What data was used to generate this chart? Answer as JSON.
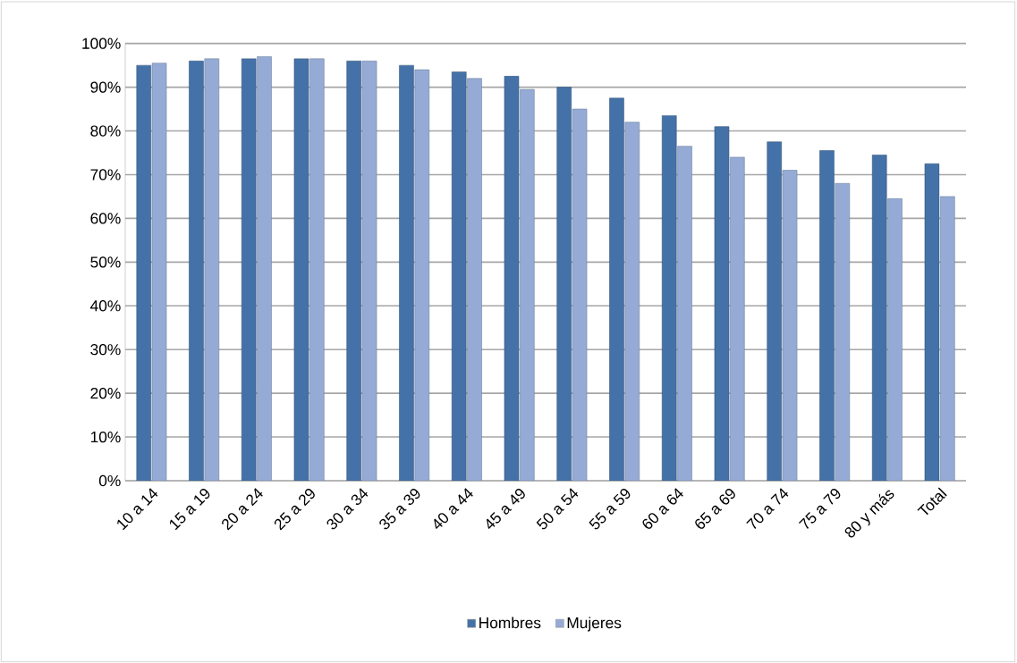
{
  "chart_data": {
    "type": "bar",
    "categories": [
      "10 a 14",
      "15 a 19",
      "20 a 24",
      "25 a 29",
      "30 a 34",
      "35 a 39",
      "40 a 44",
      "45 a 49",
      "50 a 54",
      "55 a 59",
      "60 a 64",
      "65 a 69",
      "70 a 74",
      "75 a 79",
      "80 y más",
      "Total"
    ],
    "series": [
      {
        "name": "Hombres",
        "color": "#4472a8",
        "values": [
          95,
          96,
          96.5,
          96.5,
          96,
          95,
          93.5,
          92.5,
          90,
          87.5,
          83.5,
          81,
          77.5,
          75.5,
          74.5,
          72.5
        ]
      },
      {
        "name": "Mujeres",
        "color": "#95abd6",
        "values": [
          95.5,
          96.5,
          97,
          96.5,
          96,
          94,
          92,
          89.5,
          85,
          82,
          76.5,
          74,
          71,
          68,
          64.5,
          65
        ]
      }
    ],
    "ylim": [
      0,
      100
    ],
    "yticks": [
      {
        "value": 0,
        "label": "0%"
      },
      {
        "value": 10,
        "label": "10%"
      },
      {
        "value": 20,
        "label": "20%"
      },
      {
        "value": 30,
        "label": "30%"
      },
      {
        "value": 40,
        "label": "40%"
      },
      {
        "value": 50,
        "label": "50%"
      },
      {
        "value": 60,
        "label": "60%"
      },
      {
        "value": 70,
        "label": "70%"
      },
      {
        "value": 80,
        "label": "80%"
      },
      {
        "value": 90,
        "label": "90%"
      },
      {
        "value": 100,
        "label": "100%"
      }
    ],
    "grid": "y",
    "legend": "bottom"
  }
}
